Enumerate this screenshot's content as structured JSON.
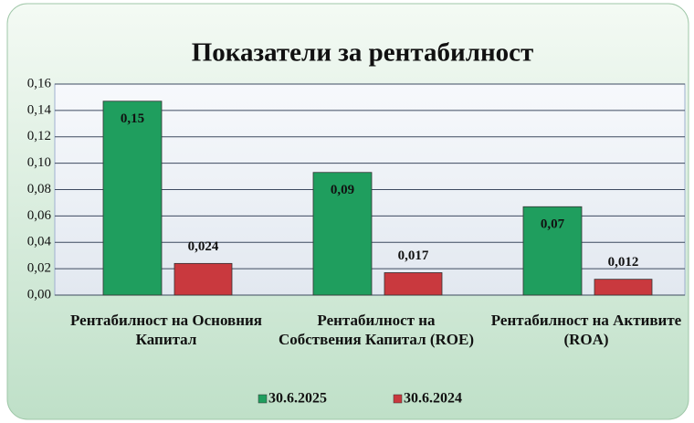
{
  "chart_data": {
    "type": "bar",
    "title": "Показатели за рентабилност",
    "categories": [
      "Рентабилност на Основния Капитал",
      "Рентабилност на Собствения Капитал (ROE)",
      "Рентабилност на Активите (ROA)"
    ],
    "series": [
      {
        "name": "30.6.2025",
        "color": "#1f9e5e",
        "values": [
          0.147,
          0.093,
          0.067
        ],
        "value_labels": [
          "0,15",
          "0,09",
          "0,07"
        ]
      },
      {
        "name": "30.6.2024",
        "color": "#c9393e",
        "values": [
          0.024,
          0.017,
          0.012
        ],
        "value_labels": [
          "0,024",
          "0,017",
          "0,012"
        ]
      }
    ],
    "ylim": [
      0,
      0.16
    ],
    "yticks": [
      {
        "value": 0,
        "label": "0,00"
      },
      {
        "value": 0.02,
        "label": "0,02"
      },
      {
        "value": 0.04,
        "label": "0,04"
      },
      {
        "value": 0.06,
        "label": "0,06"
      },
      {
        "value": 0.08,
        "label": "0,08"
      },
      {
        "value": 0.1,
        "label": "0,10"
      },
      {
        "value": 0.12,
        "label": "0,12"
      },
      {
        "value": 0.14,
        "label": "0,14"
      },
      {
        "value": 0.16,
        "label": "0,16"
      }
    ],
    "grid": true,
    "legend": "bottom"
  }
}
